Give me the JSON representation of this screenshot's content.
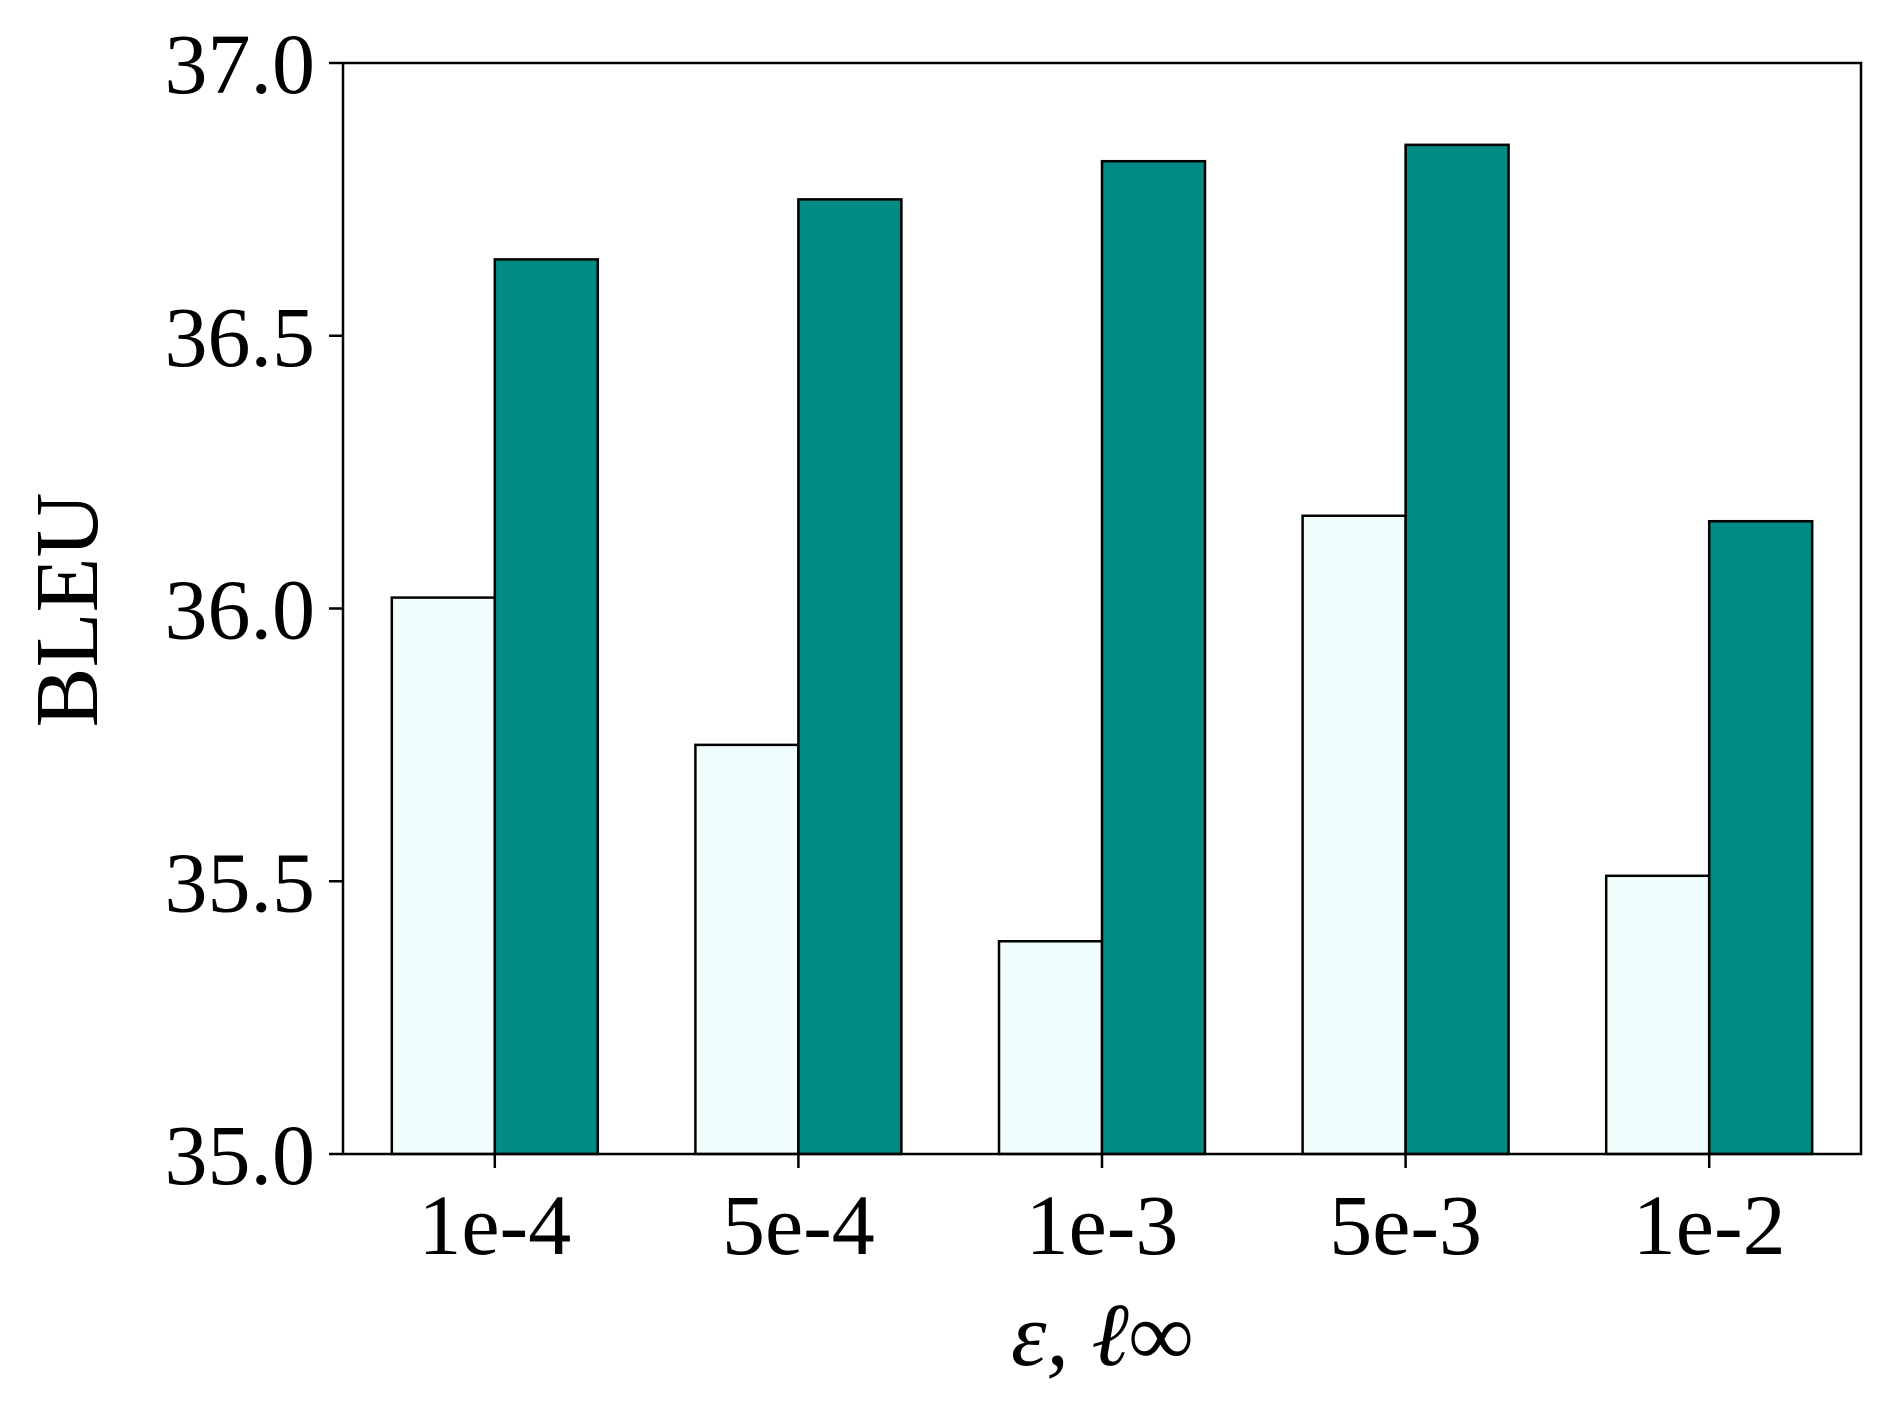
{
  "chart_data": {
    "type": "bar",
    "xlabel": "ε, ℓ∞",
    "ylabel": "BLEU",
    "categories": [
      "1e-4",
      "5e-4",
      "1e-3",
      "5e-3",
      "1e-2"
    ],
    "series": [
      {
        "color": "#effefd",
        "values": [
          36.02,
          35.75,
          35.39,
          36.17,
          35.51
        ]
      },
      {
        "color": "#008b84",
        "values": [
          36.64,
          36.75,
          36.82,
          36.85,
          36.16
        ]
      }
    ],
    "ylim": [
      35.0,
      37.0
    ],
    "yticks": [
      "35.0",
      "35.5",
      "36.0",
      "36.5",
      "37.0"
    ],
    "grid": false
  }
}
